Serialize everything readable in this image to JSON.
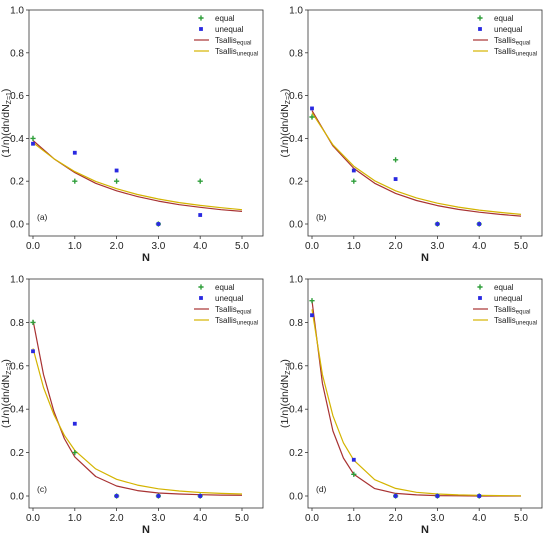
{
  "figure": {
    "colors": {
      "equal": "#2e9e3a",
      "unequal": "#2929e0",
      "tsallis_equal": "#a83232",
      "tsallis_unequal": "#d4b400"
    },
    "legend": {
      "equal": "equal",
      "unequal": "unequal",
      "tsallis_equal_main": "Tsallis",
      "tsallis_equal_sub": "equal",
      "tsallis_unequal_main": "Tsallis",
      "tsallis_unequal_sub": "unequal"
    },
    "xlabel": "N",
    "ylabel_main": "(1/n)(dn/dN",
    "x_ticks": [
      "0.0",
      "1.0",
      "2.0",
      "3.0",
      "4.0",
      "5.0"
    ],
    "y_ticks": [
      "0.0",
      "0.2",
      "0.4",
      "0.6",
      "0.8",
      "1.0"
    ]
  },
  "chart_data": [
    {
      "type": "scatter",
      "panel_label": "(a)",
      "ylabel_sub": "Z=1",
      "xlabel": "N",
      "xlim": [
        0,
        5
      ],
      "ylim": [
        0,
        1
      ],
      "legend_position": "top-right",
      "series": [
        {
          "name": "equal",
          "x": [
            0,
            1,
            2,
            3,
            4
          ],
          "y": [
            0.4,
            0.2,
            0.2,
            0.0,
            0.2
          ]
        },
        {
          "name": "unequal",
          "x": [
            0,
            1,
            2,
            3,
            4
          ],
          "y": [
            0.375,
            0.333,
            0.25,
            0.0,
            0.042
          ]
        },
        {
          "name": "Tsallis_equal",
          "x": [
            0,
            0.5,
            1,
            1.5,
            2,
            2.5,
            3,
            3.5,
            4,
            4.5,
            5
          ],
          "y": [
            0.39,
            0.305,
            0.24,
            0.19,
            0.155,
            0.128,
            0.107,
            0.09,
            0.078,
            0.067,
            0.059
          ]
        },
        {
          "name": "Tsallis_unequal",
          "x": [
            0,
            0.5,
            1,
            1.5,
            2,
            2.5,
            3,
            3.5,
            4,
            4.5,
            5
          ],
          "y": [
            0.38,
            0.305,
            0.245,
            0.199,
            0.165,
            0.138,
            0.117,
            0.1,
            0.087,
            0.076,
            0.067
          ]
        }
      ]
    },
    {
      "type": "scatter",
      "panel_label": "(b)",
      "ylabel_sub": "Z=2",
      "xlabel": "N",
      "xlim": [
        0,
        5
      ],
      "ylim": [
        0,
        1
      ],
      "legend_position": "top-right",
      "series": [
        {
          "name": "equal",
          "x": [
            0,
            1,
            2,
            3,
            4
          ],
          "y": [
            0.5,
            0.2,
            0.3,
            0.0,
            0.0
          ]
        },
        {
          "name": "unequal",
          "x": [
            0,
            1,
            2,
            3,
            4
          ],
          "y": [
            0.54,
            0.25,
            0.21,
            0.0,
            0.0
          ]
        },
        {
          "name": "Tsallis_equal",
          "x": [
            0,
            0.5,
            1,
            1.5,
            2,
            2.5,
            3,
            3.5,
            4,
            4.5,
            5
          ],
          "y": [
            0.53,
            0.365,
            0.26,
            0.19,
            0.143,
            0.11,
            0.086,
            0.068,
            0.055,
            0.045,
            0.037
          ]
        },
        {
          "name": "Tsallis_unequal",
          "x": [
            0,
            0.5,
            1,
            1.5,
            2,
            2.5,
            3,
            3.5,
            4,
            4.5,
            5
          ],
          "y": [
            0.52,
            0.37,
            0.27,
            0.202,
            0.155,
            0.122,
            0.097,
            0.079,
            0.065,
            0.054,
            0.045
          ]
        }
      ]
    },
    {
      "type": "scatter",
      "panel_label": "(c)",
      "ylabel_sub": "Z=3",
      "xlabel": "N",
      "xlim": [
        0,
        5
      ],
      "ylim": [
        0,
        1
      ],
      "legend_position": "top-right",
      "series": [
        {
          "name": "equal",
          "x": [
            0,
            1,
            2,
            3,
            4
          ],
          "y": [
            0.8,
            0.2,
            0.0,
            0.0,
            0.0
          ]
        },
        {
          "name": "unequal",
          "x": [
            0,
            1,
            2,
            3,
            4
          ],
          "y": [
            0.667,
            0.333,
            0.0,
            0.0,
            0.0
          ]
        },
        {
          "name": "Tsallis_equal",
          "x": [
            0,
            0.25,
            0.5,
            0.75,
            1,
            1.5,
            2,
            2.5,
            3,
            3.5,
            4,
            4.5,
            5
          ],
          "y": [
            0.81,
            0.56,
            0.39,
            0.265,
            0.18,
            0.09,
            0.046,
            0.025,
            0.014,
            0.009,
            0.006,
            0.004,
            0.003
          ]
        },
        {
          "name": "Tsallis_unequal",
          "x": [
            0,
            0.25,
            0.5,
            0.75,
            1,
            1.5,
            2,
            2.5,
            3,
            3.5,
            4,
            4.5,
            5
          ],
          "y": [
            0.68,
            0.5,
            0.375,
            0.28,
            0.21,
            0.125,
            0.077,
            0.05,
            0.033,
            0.023,
            0.016,
            0.012,
            0.009
          ]
        }
      ]
    },
    {
      "type": "scatter",
      "panel_label": "(d)",
      "ylabel_sub": "Z=4",
      "xlabel": "N",
      "xlim": [
        0,
        5
      ],
      "ylim": [
        0,
        1
      ],
      "legend_position": "top-right",
      "series": [
        {
          "name": "equal",
          "x": [
            0,
            1,
            2,
            3,
            4
          ],
          "y": [
            0.9,
            0.1,
            0.0,
            0.0,
            0.0
          ]
        },
        {
          "name": "unequal",
          "x": [
            0,
            1,
            2,
            3,
            4
          ],
          "y": [
            0.833,
            0.167,
            0.0,
            0.0,
            0.0
          ]
        },
        {
          "name": "Tsallis_equal",
          "x": [
            0,
            0.25,
            0.5,
            0.75,
            1,
            1.5,
            2,
            2.5,
            3,
            3.5,
            4,
            4.5,
            5
          ],
          "y": [
            0.9,
            0.52,
            0.3,
            0.175,
            0.1,
            0.034,
            0.012,
            0.005,
            0.002,
            0.001,
            0.0,
            0.0,
            0.0
          ]
        },
        {
          "name": "Tsallis_unequal",
          "x": [
            0,
            0.25,
            0.5,
            0.75,
            1,
            1.5,
            2,
            2.5,
            3,
            3.5,
            4,
            4.5,
            5
          ],
          "y": [
            0.86,
            0.56,
            0.37,
            0.245,
            0.165,
            0.075,
            0.035,
            0.017,
            0.009,
            0.005,
            0.003,
            0.002,
            0.001
          ]
        }
      ]
    }
  ]
}
